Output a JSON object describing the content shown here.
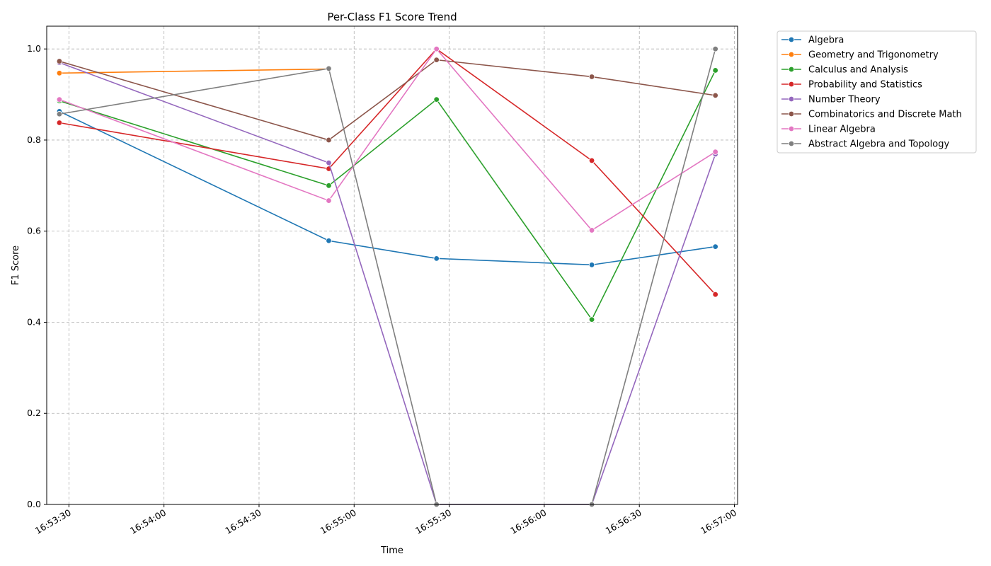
{
  "chart_data": {
    "type": "line",
    "title": "Per-Class F1 Score Trend",
    "xlabel": "Time",
    "ylabel": "F1 Score",
    "x_axis_type": "time",
    "x": [
      "16:53:27",
      "16:54:52",
      "16:55:26",
      "16:56:15",
      "16:56:54"
    ],
    "xlim": [
      "16:53:23",
      "16:57:01"
    ],
    "ylim": [
      0,
      1.05
    ],
    "x_ticks": [
      "16:53:30",
      "16:54:00",
      "16:54:30",
      "16:55:00",
      "16:55:30",
      "16:56:00",
      "16:56:30",
      "16:57:00"
    ],
    "y_ticks": [
      "0.0",
      "0.2",
      "0.4",
      "0.6",
      "0.8",
      "1.0"
    ],
    "grid": true,
    "legend_position": "outside-top-right",
    "series": [
      {
        "name": "Algebra",
        "color": "#1f77b4",
        "values": [
          0.863,
          0.579,
          0.54,
          0.526,
          0.566
        ]
      },
      {
        "name": "Geometry and Trigonometry",
        "color": "#ff7f0e",
        "values": [
          0.947,
          0.956,
          null,
          null,
          null
        ]
      },
      {
        "name": "Calculus and Analysis",
        "color": "#2ca02c",
        "values": [
          0.886,
          0.7,
          0.889,
          0.406,
          0.953
        ]
      },
      {
        "name": "Probability and Statistics",
        "color": "#d62728",
        "values": [
          0.838,
          0.737,
          1.0,
          0.755,
          0.461
        ]
      },
      {
        "name": "Number Theory",
        "color": "#9467bd",
        "values": [
          0.97,
          0.75,
          0.0,
          0.0,
          0.769
        ]
      },
      {
        "name": "Combinatorics and Discrete Math",
        "color": "#8c564b",
        "values": [
          0.973,
          0.8,
          0.976,
          0.939,
          0.898
        ]
      },
      {
        "name": "Linear Algebra",
        "color": "#e377c2",
        "values": [
          0.889,
          0.667,
          1.0,
          0.602,
          0.774
        ]
      },
      {
        "name": "Abstract Algebra and Topology",
        "color": "#7f7f7f",
        "values": [
          0.857,
          0.957,
          0.0,
          0.0,
          1.0
        ]
      }
    ]
  }
}
